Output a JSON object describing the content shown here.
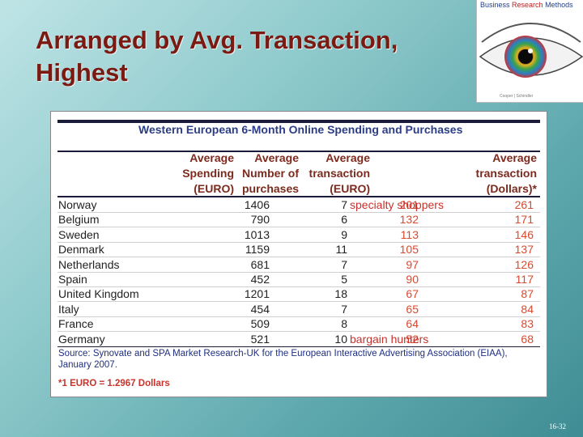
{
  "slide": {
    "title": "Arranged by Avg. Transaction, Highest",
    "page_number": "16-32"
  },
  "logo": {
    "brand_part1": "Business ",
    "brand_part2": "Research",
    "brand_part3": " Methods",
    "footer": "Cooper  |  Schindler"
  },
  "table": {
    "title": "Western European 6-Month Online Spending and Purchases",
    "headers": {
      "spending": [
        "Average",
        "Spending",
        "(EURO)"
      ],
      "purchases": [
        "Average",
        "Number of",
        "purchases"
      ],
      "transaction_euro": [
        "Average",
        "transaction",
        "(EURO)"
      ],
      "transaction_usd": [
        "Average",
        "transaction",
        "(Dollars)*"
      ]
    },
    "rows": [
      {
        "country": "Norway",
        "spending": "1406",
        "purchases": "7",
        "trans_euro": "201",
        "note": "specialty shoppers",
        "trans_usd": "261"
      },
      {
        "country": "Belgium",
        "spending": "790",
        "purchases": "6",
        "trans_euro": "132",
        "note": "",
        "trans_usd": "171"
      },
      {
        "country": "Sweden",
        "spending": "1013",
        "purchases": "9",
        "trans_euro": "113",
        "note": "",
        "trans_usd": "146"
      },
      {
        "country": "Denmark",
        "spending": "1159",
        "purchases": "11",
        "trans_euro": "105",
        "note": "",
        "trans_usd": "137"
      },
      {
        "country": "Netherlands",
        "spending": "681",
        "purchases": "7",
        "trans_euro": "97",
        "note": "",
        "trans_usd": "126"
      },
      {
        "country": "Spain",
        "spending": "452",
        "purchases": "5",
        "trans_euro": "90",
        "note": "",
        "trans_usd": "117"
      },
      {
        "country": "United Kingdom",
        "spending": "1201",
        "purchases": "18",
        "trans_euro": "67",
        "note": "",
        "trans_usd": "87"
      },
      {
        "country": "Italy",
        "spending": "454",
        "purchases": "7",
        "trans_euro": "65",
        "note": "",
        "trans_usd": "84"
      },
      {
        "country": "France",
        "spending": "509",
        "purchases": "8",
        "trans_euro": "64",
        "note": "",
        "trans_usd": "83"
      },
      {
        "country": "Germany",
        "spending": "521",
        "purchases": "10",
        "trans_euro": "52",
        "note": "bargain hunters",
        "trans_usd": "68"
      }
    ],
    "source": "Source: Synovate and SPA Market Research-UK for the European Interactive Advertising Association (EIAA), January 2007.",
    "footnote": "*1 EURO = 1.2967 Dollars"
  },
  "colors": {
    "title": "#7a1a12",
    "table_title": "#2b3d86",
    "header": "#7d2a1e",
    "highlight": "#d8492f"
  }
}
